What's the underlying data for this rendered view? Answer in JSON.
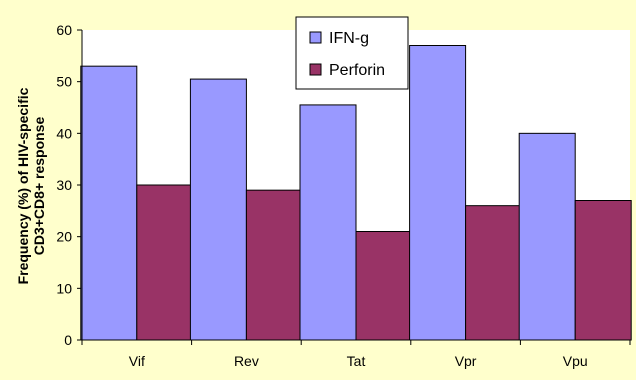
{
  "chart_data": {
    "type": "bar",
    "title": "",
    "xlabel": "",
    "ylabel_lines": [
      "Frequency (%) of HIV-specific",
      "CD3+CD8+ response"
    ],
    "categories": [
      "Vif",
      "Rev",
      "Tat",
      "Vpr",
      "Vpu"
    ],
    "series": [
      {
        "name": "IFN-g",
        "values": [
          53,
          50.5,
          45.5,
          57,
          40
        ],
        "color": "#9999ff"
      },
      {
        "name": "Perforin",
        "values": [
          30,
          29,
          21,
          26,
          27
        ],
        "color": "#993366"
      }
    ],
    "ylim": [
      0,
      60
    ],
    "yticks": [
      0,
      10,
      20,
      30,
      40,
      50,
      60
    ],
    "grid": false,
    "legend_position": "top-right",
    "background_color": "#ffffcc",
    "plot_background": "#ffffff"
  }
}
